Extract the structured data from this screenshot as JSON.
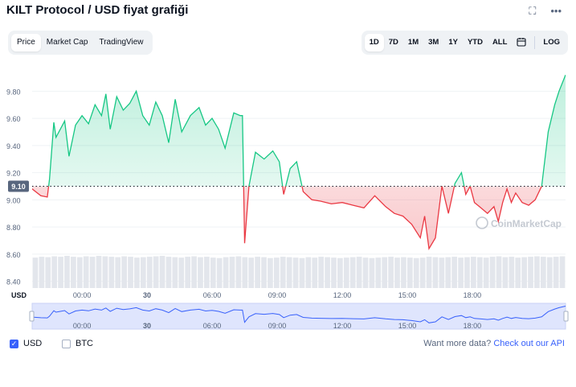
{
  "header": {
    "title": "KILT Protocol / USD fiyat grafiği"
  },
  "tabs_left": [
    {
      "label": "Price",
      "active": true
    },
    {
      "label": "Market Cap",
      "active": false
    },
    {
      "label": "TradingView",
      "active": false
    }
  ],
  "ranges": [
    {
      "label": "1D",
      "active": true
    },
    {
      "label": "7D",
      "active": false
    },
    {
      "label": "1M",
      "active": false
    },
    {
      "label": "3M",
      "active": false
    },
    {
      "label": "1Y",
      "active": false
    },
    {
      "label": "YTD",
      "active": false
    },
    {
      "label": "ALL",
      "active": false
    }
  ],
  "log_label": "LOG",
  "icons": {
    "fullscreen": "expand-icon",
    "more": "more-icon",
    "calendar": "calendar-icon"
  },
  "watermark": "CoinMarketCap",
  "colors": {
    "up": "#16c784",
    "down": "#ea3943",
    "accent": "#3861fb"
  },
  "legend": {
    "usd_label": "USD",
    "btc_label": "BTC"
  },
  "api": {
    "prefix": "Want more data?",
    "link": "Check out our API"
  },
  "chart_data": {
    "type": "line",
    "baseline": 9.1,
    "baseline_label": "9.10",
    "ylim": [
      8.35,
      9.95
    ],
    "yticks": [
      "9.80",
      "9.60",
      "9.40",
      "9.20",
      "9.00",
      "8.80",
      "8.60",
      "8.40"
    ],
    "y_unit": "USD",
    "x_range_hours": [
      -2.3,
      22.3
    ],
    "xticks": [
      {
        "label": "00:00",
        "x": 0
      },
      {
        "label": "30",
        "x": 4
      },
      {
        "label": "06:00",
        "x": 8
      },
      {
        "label": "09:00",
        "x": 12
      },
      {
        "label": "12:00",
        "x": 16
      },
      {
        "label": "15:00",
        "x": 20
      },
      {
        "label": "18:00",
        "x": 24
      }
    ],
    "series": [
      {
        "x": [
          -2.3,
          -1.9,
          -1.6,
          -1.5,
          -1.3,
          -1.2,
          -1.0,
          -0.8,
          -0.6,
          -0.3,
          0.0,
          0.3,
          0.6,
          0.9,
          1.1,
          1.3,
          1.6,
          1.9,
          2.2,
          2.5,
          2.8,
          3.1,
          3.4,
          3.7,
          4.0,
          4.3,
          4.6,
          5.0,
          5.4,
          5.7,
          6.0,
          6.3,
          6.6,
          7.0,
          7.3,
          7.4,
          7.5,
          7.7,
          8.0,
          8.4,
          8.8,
          9.1,
          9.3,
          9.6,
          9.9,
          10.2,
          10.6,
          11.0,
          11.5,
          12.0,
          12.5,
          13.0,
          13.5,
          14.0,
          14.4,
          14.8,
          15.2,
          15.6,
          15.8,
          16.0,
          16.3,
          16.6,
          16.9,
          17.2,
          17.5,
          17.7,
          17.9,
          18.1,
          18.4,
          18.7,
          19.0,
          19.2,
          19.4,
          19.6,
          19.8,
          20.0,
          20.3,
          20.6,
          20.9,
          21.2,
          21.5,
          21.8,
          22.0,
          22.3
        ],
        "y": [
          9.08,
          9.03,
          9.02,
          9.15,
          9.57,
          9.46,
          9.52,
          9.58,
          9.32,
          9.55,
          9.62,
          9.56,
          9.7,
          9.62,
          9.78,
          9.52,
          9.76,
          9.66,
          9.71,
          9.8,
          9.62,
          9.55,
          9.72,
          9.62,
          9.42,
          9.74,
          9.5,
          9.62,
          9.68,
          9.55,
          9.6,
          9.52,
          9.38,
          9.64,
          9.62,
          9.62,
          8.68,
          9.1,
          9.35,
          9.3,
          9.36,
          9.28,
          9.04,
          9.23,
          9.28,
          9.06,
          9.0,
          8.99,
          8.97,
          8.98,
          8.96,
          8.94,
          9.03,
          8.95,
          8.9,
          8.88,
          8.82,
          8.72,
          8.88,
          8.64,
          8.72,
          9.1,
          8.9,
          9.12,
          9.2,
          9.04,
          9.1,
          8.98,
          8.94,
          8.9,
          8.95,
          8.84,
          8.98,
          9.08,
          8.98,
          9.05,
          8.98,
          8.96,
          9.0,
          9.1,
          9.5,
          9.7,
          9.8,
          9.92
        ]
      }
    ],
    "volume_note": "bars",
    "volume": [
      70,
      72,
      71,
      73,
      72,
      74,
      72,
      71,
      73,
      72,
      74,
      73,
      72,
      71,
      73,
      72,
      70,
      71,
      72,
      73,
      74,
      72,
      71,
      70,
      72,
      73,
      71,
      72,
      70,
      69,
      71,
      72,
      73,
      71,
      70,
      72,
      71,
      69,
      70,
      72,
      71,
      70,
      69,
      71,
      70,
      72,
      71,
      70,
      69,
      70,
      71,
      72,
      70,
      69,
      70,
      71,
      72,
      70,
      71,
      70,
      69,
      70,
      72,
      71,
      70,
      71,
      72,
      70,
      71,
      72,
      71,
      70,
      72,
      73,
      71,
      72,
      70,
      71,
      72,
      73,
      72,
      71,
      72,
      73
    ]
  }
}
